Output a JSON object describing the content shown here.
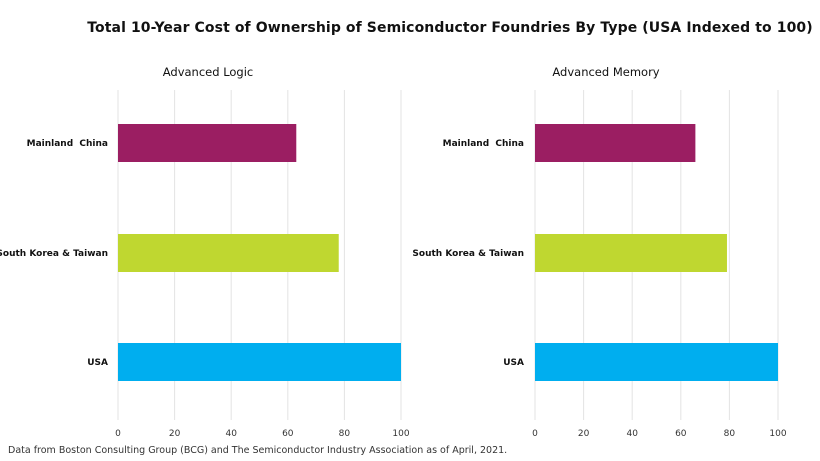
{
  "title": "Total 10-Year Cost of Ownership of Semiconductor Foundries By Type (USA Indexed to 100)",
  "footnote": "Data from Boston Consulting Group (BCG) and The Semiconductor Industry Association as of April, 2021.",
  "colors": {
    "Mainland  China": "#9b1e62",
    "South Korea & Taiwan": "#bfd730",
    "USA": "#00aeef"
  },
  "chart_data": [
    {
      "type": "bar",
      "orientation": "horizontal",
      "title": "Advanced Logic",
      "categories": [
        "Mainland  China",
        "South Korea & Taiwan",
        "USA"
      ],
      "values": [
        63,
        78,
        100
      ],
      "xlim": [
        0,
        100
      ],
      "xticks": [
        0,
        20,
        40,
        60,
        80,
        100
      ],
      "grid": true
    },
    {
      "type": "bar",
      "orientation": "horizontal",
      "title": "Advanced Memory",
      "categories": [
        "Mainland  China",
        "South Korea & Taiwan",
        "USA"
      ],
      "values": [
        66,
        79,
        100
      ],
      "xlim": [
        0,
        100
      ],
      "xticks": [
        0,
        20,
        40,
        60,
        80,
        100
      ],
      "grid": true
    }
  ]
}
